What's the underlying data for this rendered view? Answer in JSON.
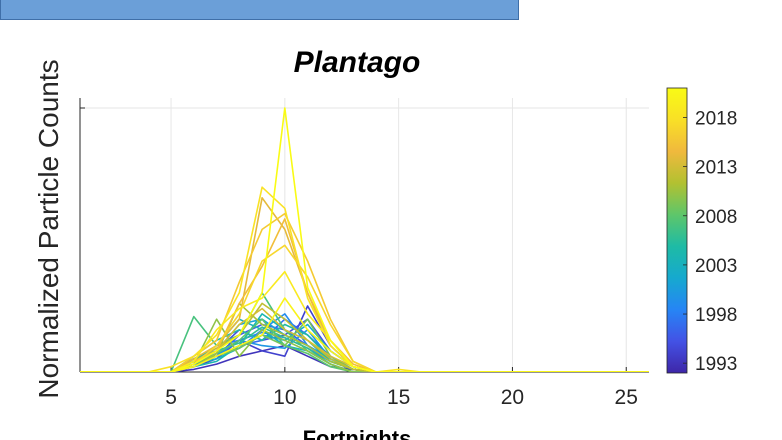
{
  "chart_data": {
    "type": "line",
    "title": "Plantago",
    "xlabel": "Fortnights",
    "ylabel": "Normalized Particle Counts",
    "xlim": [
      1,
      26
    ],
    "ylim": [
      0,
      1
    ],
    "xticks": [
      5,
      10,
      15,
      20,
      25
    ],
    "grid": true,
    "colorbar": {
      "label": "",
      "ticks": [
        1993,
        1998,
        2003,
        2008,
        2013,
        2018
      ],
      "range": [
        1992,
        2021
      ],
      "colormap": "parula",
      "stops": [
        "#3e26a8",
        "#4352e5",
        "#2685f5",
        "#16a9cf",
        "#1ebba5",
        "#5ec66a",
        "#b2c131",
        "#f0b93d",
        "#f9e026",
        "#f9fb15"
      ]
    },
    "x": [
      1,
      2,
      3,
      4,
      5,
      6,
      7,
      8,
      9,
      10,
      11,
      12,
      13,
      14,
      15,
      16,
      17,
      18,
      19,
      20,
      21,
      22,
      23,
      24,
      25,
      26
    ],
    "series": [
      {
        "year": 1993,
        "values": [
          0,
          0,
          0,
          0,
          0,
          0.01,
          0.03,
          0.06,
          0.08,
          0.1,
          0.06,
          0.02,
          0.01,
          0,
          0,
          0,
          0,
          0,
          0,
          0,
          0,
          0,
          0,
          0,
          0,
          0
        ]
      },
      {
        "year": 1994,
        "values": [
          0,
          0,
          0,
          0,
          0,
          0.02,
          0.05,
          0.12,
          0.08,
          0.06,
          0.25,
          0.1,
          0.02,
          0,
          0,
          0,
          0,
          0,
          0,
          0,
          0,
          0,
          0,
          0,
          0,
          0
        ]
      },
      {
        "year": 1995,
        "values": [
          0,
          0,
          0,
          0,
          0,
          0.03,
          0.08,
          0.16,
          0.12,
          0.14,
          0.2,
          0.08,
          0.02,
          0,
          0,
          0,
          0,
          0,
          0,
          0,
          0,
          0,
          0,
          0,
          0,
          0
        ]
      },
      {
        "year": 1996,
        "values": [
          0,
          0,
          0,
          0,
          0,
          0.05,
          0.06,
          0.14,
          0.18,
          0.16,
          0.1,
          0.05,
          0.01,
          0,
          0,
          0,
          0,
          0,
          0,
          0,
          0,
          0,
          0,
          0,
          0,
          0
        ]
      },
      {
        "year": 1997,
        "values": [
          0,
          0,
          0,
          0,
          0,
          0.02,
          0.06,
          0.1,
          0.12,
          0.2,
          0.14,
          0.06,
          0.01,
          0,
          0,
          0,
          0,
          0,
          0,
          0,
          0,
          0,
          0,
          0,
          0,
          0
        ]
      },
      {
        "year": 1998,
        "values": [
          0,
          0,
          0,
          0,
          0,
          0.04,
          0.1,
          0.12,
          0.15,
          0.13,
          0.09,
          0.04,
          0.01,
          0,
          0,
          0,
          0,
          0,
          0,
          0,
          0,
          0,
          0,
          0,
          0,
          0
        ]
      },
      {
        "year": 1999,
        "values": [
          0,
          0,
          0,
          0,
          0,
          0.03,
          0.07,
          0.09,
          0.16,
          0.22,
          0.1,
          0.05,
          0.01,
          0,
          0,
          0,
          0,
          0,
          0,
          0,
          0,
          0,
          0,
          0,
          0,
          0
        ]
      },
      {
        "year": 2000,
        "values": [
          0,
          0,
          0,
          0,
          0,
          0.02,
          0.06,
          0.12,
          0.1,
          0.09,
          0.16,
          0.05,
          0.01,
          0,
          0,
          0,
          0,
          0,
          0,
          0,
          0,
          0,
          0,
          0,
          0,
          0
        ]
      },
      {
        "year": 2001,
        "values": [
          0,
          0,
          0,
          0,
          0,
          0.05,
          0.08,
          0.18,
          0.2,
          0.14,
          0.1,
          0.04,
          0.01,
          0,
          0,
          0,
          0,
          0,
          0,
          0,
          0,
          0,
          0,
          0,
          0,
          0
        ]
      },
      {
        "year": 2002,
        "values": [
          0,
          0,
          0,
          0,
          0,
          0.03,
          0.05,
          0.09,
          0.14,
          0.12,
          0.18,
          0.08,
          0.02,
          0,
          0,
          0,
          0,
          0,
          0,
          0,
          0,
          0,
          0,
          0,
          0,
          0
        ]
      },
      {
        "year": 2003,
        "values": [
          0,
          0,
          0,
          0,
          0,
          0.04,
          0.1,
          0.2,
          0.16,
          0.1,
          0.08,
          0.03,
          0,
          0,
          0,
          0,
          0,
          0,
          0,
          0,
          0,
          0,
          0,
          0,
          0,
          0
        ]
      },
      {
        "year": 2004,
        "values": [
          0,
          0,
          0,
          0,
          0,
          0.02,
          0.04,
          0.1,
          0.22,
          0.16,
          0.12,
          0.04,
          0.01,
          0,
          0,
          0,
          0,
          0,
          0,
          0,
          0,
          0,
          0,
          0,
          0,
          0
        ]
      },
      {
        "year": 2005,
        "values": [
          0,
          0,
          0,
          0,
          0,
          0.06,
          0.12,
          0.16,
          0.12,
          0.18,
          0.14,
          0.05,
          0.01,
          0,
          0,
          0,
          0,
          0,
          0,
          0,
          0,
          0,
          0,
          0,
          0,
          0
        ]
      },
      {
        "year": 2006,
        "values": [
          0,
          0,
          0,
          0,
          0,
          0.03,
          0.08,
          0.11,
          0.17,
          0.13,
          0.09,
          0.03,
          0,
          0,
          0,
          0,
          0,
          0,
          0,
          0,
          0,
          0,
          0,
          0,
          0,
          0
        ]
      },
      {
        "year": 2007,
        "values": [
          0,
          0,
          0,
          0,
          0,
          0.21,
          0.1,
          0.14,
          0.3,
          0.16,
          0.08,
          0.03,
          0,
          0,
          0,
          0,
          0,
          0,
          0,
          0,
          0,
          0,
          0,
          0,
          0,
          0
        ]
      },
      {
        "year": 2008,
        "values": [
          0,
          0,
          0,
          0,
          0,
          0.03,
          0.07,
          0.12,
          0.2,
          0.1,
          0.07,
          0.02,
          0,
          0,
          0,
          0,
          0,
          0,
          0,
          0,
          0,
          0,
          0,
          0,
          0,
          0
        ]
      },
      {
        "year": 2009,
        "values": [
          0,
          0,
          0,
          0,
          0,
          0.05,
          0.06,
          0.09,
          0.14,
          0.1,
          0.2,
          0.06,
          0.01,
          0,
          0,
          0,
          0,
          0,
          0,
          0,
          0,
          0,
          0,
          0,
          0,
          0
        ]
      },
      {
        "year": 2010,
        "values": [
          0,
          0,
          0,
          0,
          0,
          0.03,
          0.2,
          0.06,
          0.16,
          0.12,
          0.08,
          0.03,
          0,
          0,
          0,
          0,
          0,
          0,
          0,
          0,
          0,
          0,
          0,
          0,
          0,
          0
        ]
      },
      {
        "year": 2011,
        "values": [
          0,
          0,
          0,
          0,
          0,
          0.02,
          0.07,
          0.26,
          0.18,
          0.14,
          0.1,
          0.04,
          0.01,
          0,
          0,
          0,
          0,
          0,
          0,
          0,
          0,
          0,
          0,
          0,
          0,
          0
        ]
      },
      {
        "year": 2012,
        "values": [
          0,
          0,
          0,
          0,
          0,
          0.04,
          0.09,
          0.14,
          0.26,
          0.2,
          0.12,
          0.05,
          0.01,
          0,
          0,
          0,
          0,
          0,
          0,
          0,
          0,
          0,
          0,
          0,
          0,
          0
        ]
      },
      {
        "year": 2013,
        "values": [
          0,
          0,
          0,
          0,
          0,
          0.03,
          0.08,
          0.18,
          0.24,
          0.16,
          0.12,
          0.06,
          0.02,
          0,
          0,
          0,
          0,
          0,
          0,
          0,
          0,
          0,
          0,
          0,
          0,
          0
        ]
      },
      {
        "year": 2014,
        "values": [
          0,
          0,
          0,
          0,
          0,
          0.05,
          0.1,
          0.2,
          0.66,
          0.54,
          0.3,
          0.1,
          0.02,
          0,
          0,
          0,
          0,
          0,
          0,
          0,
          0,
          0,
          0,
          0,
          0,
          0
        ]
      },
      {
        "year": 2015,
        "values": [
          0,
          0,
          0,
          0,
          0,
          0.04,
          0.08,
          0.26,
          0.4,
          0.58,
          0.3,
          0.12,
          0.03,
          0,
          0,
          0,
          0,
          0,
          0,
          0,
          0,
          0,
          0,
          0,
          0,
          0
        ]
      },
      {
        "year": 2016,
        "values": [
          0,
          0,
          0,
          0,
          0,
          0.06,
          0.12,
          0.34,
          0.54,
          0.6,
          0.42,
          0.2,
          0.04,
          0,
          0,
          0,
          0,
          0,
          0,
          0,
          0,
          0,
          0,
          0,
          0,
          0
        ]
      },
      {
        "year": 2017,
        "values": [
          0,
          0,
          0,
          0,
          0,
          0.03,
          0.1,
          0.22,
          0.42,
          0.48,
          0.36,
          0.18,
          0.04,
          0,
          0,
          0,
          0,
          0,
          0,
          0,
          0,
          0,
          0,
          0,
          0,
          0
        ]
      },
      {
        "year": 2018,
        "values": [
          0,
          0,
          0,
          0,
          0.02,
          0.06,
          0.14,
          0.3,
          0.7,
          0.62,
          0.28,
          0.1,
          0.02,
          0,
          0.01,
          0,
          0,
          0,
          0,
          0,
          0,
          0,
          0,
          0,
          0,
          0
        ]
      },
      {
        "year": 2019,
        "values": [
          0,
          0,
          0,
          0,
          0,
          0.04,
          0.16,
          0.24,
          0.28,
          0.38,
          0.22,
          0.12,
          0.02,
          0,
          0,
          0,
          0,
          0,
          0,
          0,
          0,
          0,
          0,
          0,
          0,
          0
        ]
      },
      {
        "year": 2020,
        "values": [
          0,
          0,
          0,
          0,
          0,
          0.02,
          0.06,
          0.1,
          0.14,
          0.28,
          0.16,
          0.08,
          0.02,
          0,
          0,
          0,
          0,
          0,
          0,
          0,
          0,
          0,
          0,
          0,
          0,
          0
        ]
      },
      {
        "year": 2021,
        "values": [
          0,
          0,
          0,
          0,
          0,
          0.03,
          0.08,
          0.14,
          0.3,
          1.0,
          0.32,
          0.12,
          0.02,
          0,
          0,
          0,
          0,
          0,
          0,
          0,
          0,
          0,
          0,
          0,
          0,
          0
        ]
      }
    ]
  }
}
